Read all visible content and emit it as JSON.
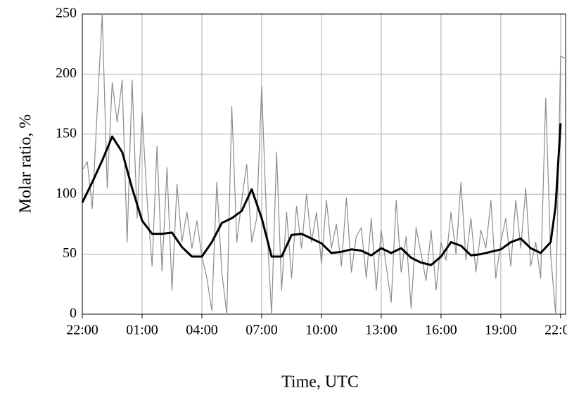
{
  "chart_data": {
    "type": "line",
    "xlabel": "Time, UTC",
    "ylabel": "Molar ratio, %",
    "xlim": [
      22,
      46.25
    ],
    "ylim": [
      0,
      250
    ],
    "xticks": [
      {
        "value": 22,
        "label": "22:00"
      },
      {
        "value": 25,
        "label": "01:00"
      },
      {
        "value": 28,
        "label": "04:00"
      },
      {
        "value": 31,
        "label": "07:00"
      },
      {
        "value": 34,
        "label": "10:00"
      },
      {
        "value": 37,
        "label": "13:00"
      },
      {
        "value": 40,
        "label": "16:00"
      },
      {
        "value": 43,
        "label": "19:00"
      },
      {
        "value": 46,
        "label": "22:00"
      }
    ],
    "yticks": [
      0,
      50,
      100,
      150,
      200,
      250
    ],
    "grid": true,
    "series": [
      {
        "color": "#8c8c8c",
        "x": [
          22,
          22.25,
          22.5,
          22.75,
          23,
          23.25,
          23.5,
          23.75,
          24,
          24.25,
          24.5,
          24.75,
          25,
          25.25,
          25.5,
          25.75,
          26,
          26.25,
          26.5,
          26.75,
          27,
          27.25,
          27.5,
          27.75,
          28,
          28.25,
          28.5,
          28.75,
          29,
          29.25,
          29.5,
          29.75,
          30,
          30.25,
          30.5,
          30.75,
          31,
          31.25,
          31.5,
          31.75,
          32,
          32.25,
          32.5,
          32.75,
          33,
          33.25,
          33.5,
          33.75,
          34,
          34.25,
          34.5,
          34.75,
          35,
          35.25,
          35.5,
          35.75,
          36,
          36.25,
          36.5,
          36.75,
          37,
          37.25,
          37.5,
          37.75,
          38,
          38.25,
          38.5,
          38.75,
          39,
          39.25,
          39.5,
          39.75,
          40,
          40.25,
          40.5,
          40.75,
          41,
          41.25,
          41.5,
          41.75,
          42,
          42.25,
          42.5,
          42.75,
          43,
          43.25,
          43.5,
          43.75,
          44,
          44.25,
          44.5,
          44.75,
          45,
          45.25,
          45.5,
          45.75,
          46,
          46.25
        ],
        "values": [
          120,
          127,
          88,
          170,
          250,
          105,
          193,
          160,
          195,
          60,
          195,
          80,
          168,
          95,
          40,
          140,
          36,
          122,
          20,
          108,
          60,
          85,
          55,
          78,
          48,
          30,
          3,
          110,
          35,
          0,
          173,
          60,
          95,
          125,
          60,
          80,
          190,
          75,
          0,
          135,
          20,
          85,
          30,
          90,
          55,
          100,
          60,
          85,
          42,
          95,
          55,
          75,
          40,
          97,
          35,
          65,
          72,
          30,
          80,
          20,
          70,
          40,
          10,
          95,
          35,
          65,
          5,
          72,
          50,
          28,
          70,
          20,
          60,
          45,
          85,
          50,
          110,
          45,
          80,
          35,
          70,
          55,
          95,
          30,
          60,
          80,
          40,
          95,
          55,
          105,
          40,
          60,
          30,
          180,
          50,
          0,
          215,
          213
        ]
      },
      {
        "color": "#000000",
        "x": [
          22,
          22.5,
          23,
          23.5,
          24,
          24.5,
          25,
          25.5,
          26,
          26.5,
          27,
          27.5,
          28,
          28.5,
          29,
          29.5,
          30,
          30.5,
          31,
          31.5,
          32,
          32.5,
          33,
          33.5,
          34,
          34.5,
          35,
          35.5,
          36,
          36.5,
          37,
          37.5,
          38,
          38.5,
          39,
          39.5,
          40,
          40.5,
          41,
          41.5,
          42,
          42.5,
          43,
          43.5,
          44,
          44.5,
          45,
          45.5,
          45.75,
          46
        ],
        "values": [
          93,
          110,
          128,
          148,
          135,
          105,
          78,
          67,
          67,
          68,
          56,
          48,
          48,
          60,
          76,
          80,
          86,
          104,
          80,
          48,
          48,
          66,
          67,
          63,
          59,
          51,
          52,
          54,
          53,
          49,
          55,
          51,
          55,
          47,
          43,
          41,
          48,
          60,
          57,
          49,
          50,
          52,
          54,
          60,
          63,
          55,
          51,
          60,
          90,
          159
        ]
      }
    ]
  }
}
